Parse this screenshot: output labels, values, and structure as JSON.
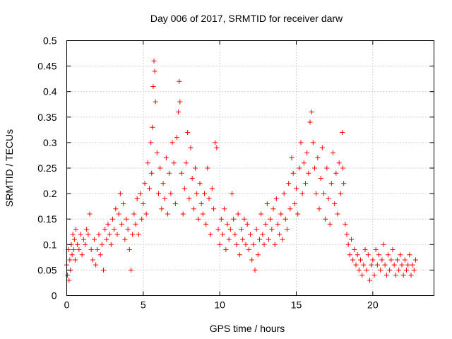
{
  "chart_data": {
    "type": "scatter",
    "title": "Day 006 of 2017, SRMTID for receiver darw",
    "xlabel": "GPS time / hours",
    "ylabel": "SRMTID / TECUs",
    "xlim": [
      0,
      24
    ],
    "ylim": [
      0,
      0.5
    ],
    "xticks": [
      0,
      5,
      10,
      15,
      20
    ],
    "xtick_labels": [
      "0",
      "5",
      "10",
      "15",
      "20"
    ],
    "yticks": [
      0,
      0.05,
      0.1,
      0.15,
      0.2,
      0.25,
      0.3,
      0.35,
      0.4,
      0.45,
      0.5
    ],
    "ytick_labels": [
      "0",
      "0.05",
      "0.1",
      "0.15",
      "0.2",
      "0.25",
      "0.3",
      "0.35",
      "0.4",
      "0.45",
      "0.5"
    ],
    "grid": true,
    "marker": "+",
    "marker_color": "#ff0000",
    "series": [
      {
        "name": "SRMTID",
        "points": [
          [
            0.0,
            0.06
          ],
          [
            0.05,
            0.04
          ],
          [
            0.1,
            0.09
          ],
          [
            0.15,
            0.03
          ],
          [
            0.2,
            0.07
          ],
          [
            0.25,
            0.05
          ],
          [
            0.3,
            0.1
          ],
          [
            0.35,
            0.08
          ],
          [
            0.4,
            0.12
          ],
          [
            0.45,
            0.09
          ],
          [
            0.5,
            0.11
          ],
          [
            0.55,
            0.07
          ],
          [
            0.6,
            0.13
          ],
          [
            0.7,
            0.1
          ],
          [
            0.8,
            0.09
          ],
          [
            0.9,
            0.12
          ],
          [
            1.0,
            0.08
          ],
          [
            1.1,
            0.11
          ],
          [
            1.2,
            0.1
          ],
          [
            1.3,
            0.13
          ],
          [
            1.4,
            0.12
          ],
          [
            1.5,
            0.16
          ],
          [
            1.6,
            0.09
          ],
          [
            1.7,
            0.07
          ],
          [
            1.8,
            0.11
          ],
          [
            1.9,
            0.06
          ],
          [
            2.0,
            0.09
          ],
          [
            2.1,
            0.12
          ],
          [
            2.2,
            0.08
          ],
          [
            2.3,
            0.1
          ],
          [
            2.4,
            0.05
          ],
          [
            2.5,
            0.13
          ],
          [
            2.6,
            0.11
          ],
          [
            2.7,
            0.14
          ],
          [
            2.8,
            0.12
          ],
          [
            2.9,
            0.1
          ],
          [
            3.0,
            0.15
          ],
          [
            3.1,
            0.13
          ],
          [
            3.2,
            0.17
          ],
          [
            3.3,
            0.12
          ],
          [
            3.4,
            0.16
          ],
          [
            3.5,
            0.2
          ],
          [
            3.6,
            0.14
          ],
          [
            3.7,
            0.18
          ],
          [
            3.8,
            0.11
          ],
          [
            3.9,
            0.15
          ],
          [
            4.0,
            0.13
          ],
          [
            4.1,
            0.09
          ],
          [
            4.2,
            0.05
          ],
          [
            4.3,
            0.12
          ],
          [
            4.4,
            0.16
          ],
          [
            4.5,
            0.14
          ],
          [
            4.6,
            0.19
          ],
          [
            4.7,
            0.12
          ],
          [
            4.8,
            0.2
          ],
          [
            4.9,
            0.15
          ],
          [
            5.0,
            0.18
          ],
          [
            5.1,
            0.22
          ],
          [
            5.2,
            0.16
          ],
          [
            5.3,
            0.26
          ],
          [
            5.4,
            0.21
          ],
          [
            5.5,
            0.3
          ],
          [
            5.55,
            0.24
          ],
          [
            5.6,
            0.33
          ],
          [
            5.65,
            0.41
          ],
          [
            5.7,
            0.46
          ],
          [
            5.75,
            0.44
          ],
          [
            5.8,
            0.38
          ],
          [
            5.9,
            0.28
          ],
          [
            6.0,
            0.2
          ],
          [
            6.1,
            0.25
          ],
          [
            6.2,
            0.17
          ],
          [
            6.3,
            0.22
          ],
          [
            6.4,
            0.19
          ],
          [
            6.5,
            0.27
          ],
          [
            6.6,
            0.16
          ],
          [
            6.7,
            0.24
          ],
          [
            6.8,
            0.2
          ],
          [
            6.9,
            0.3
          ],
          [
            7.0,
            0.26
          ],
          [
            7.1,
            0.18
          ],
          [
            7.2,
            0.31
          ],
          [
            7.3,
            0.36
          ],
          [
            7.35,
            0.42
          ],
          [
            7.4,
            0.38
          ],
          [
            7.5,
            0.24
          ],
          [
            7.6,
            0.16
          ],
          [
            7.7,
            0.21
          ],
          [
            7.8,
            0.26
          ],
          [
            7.9,
            0.32
          ],
          [
            8.0,
            0.19
          ],
          [
            8.1,
            0.29
          ],
          [
            8.2,
            0.23
          ],
          [
            8.3,
            0.17
          ],
          [
            8.4,
            0.25
          ],
          [
            8.5,
            0.2
          ],
          [
            8.6,
            0.15
          ],
          [
            8.7,
            0.22
          ],
          [
            8.8,
            0.18
          ],
          [
            8.9,
            0.16
          ],
          [
            9.0,
            0.2
          ],
          [
            9.1,
            0.14
          ],
          [
            9.2,
            0.25
          ],
          [
            9.3,
            0.19
          ],
          [
            9.4,
            0.12
          ],
          [
            9.5,
            0.21
          ],
          [
            9.6,
            0.17
          ],
          [
            9.7,
            0.3
          ],
          [
            9.8,
            0.29
          ],
          [
            9.9,
            0.13
          ],
          [
            10.0,
            0.1
          ],
          [
            10.1,
            0.15
          ],
          [
            10.2,
            0.12
          ],
          [
            10.3,
            0.17
          ],
          [
            10.4,
            0.09
          ],
          [
            10.5,
            0.14
          ],
          [
            10.6,
            0.11
          ],
          [
            10.7,
            0.13
          ],
          [
            10.8,
            0.2
          ],
          [
            10.9,
            0.15
          ],
          [
            11.0,
            0.12
          ],
          [
            11.1,
            0.1
          ],
          [
            11.2,
            0.16
          ],
          [
            11.3,
            0.08
          ],
          [
            11.4,
            0.13
          ],
          [
            11.5,
            0.11
          ],
          [
            11.6,
            0.15
          ],
          [
            11.7,
            0.1
          ],
          [
            11.8,
            0.14
          ],
          [
            11.9,
            0.09
          ],
          [
            12.0,
            0.12
          ],
          [
            12.1,
            0.07
          ],
          [
            12.2,
            0.1
          ],
          [
            12.3,
            0.05
          ],
          [
            12.4,
            0.13
          ],
          [
            12.5,
            0.08
          ],
          [
            12.6,
            0.11
          ],
          [
            12.7,
            0.16
          ],
          [
            12.8,
            0.12
          ],
          [
            12.9,
            0.1
          ],
          [
            13.0,
            0.14
          ],
          [
            13.1,
            0.18
          ],
          [
            13.2,
            0.11
          ],
          [
            13.3,
            0.15
          ],
          [
            13.4,
            0.13
          ],
          [
            13.5,
            0.17
          ],
          [
            13.6,
            0.1
          ],
          [
            13.7,
            0.19
          ],
          [
            13.8,
            0.14
          ],
          [
            13.9,
            0.12
          ],
          [
            14.0,
            0.16
          ],
          [
            14.1,
            0.11
          ],
          [
            14.2,
            0.2
          ],
          [
            14.3,
            0.15
          ],
          [
            14.4,
            0.13
          ],
          [
            14.5,
            0.22
          ],
          [
            14.6,
            0.17
          ],
          [
            14.7,
            0.27
          ],
          [
            14.8,
            0.24
          ],
          [
            14.9,
            0.18
          ],
          [
            15.0,
            0.21
          ],
          [
            15.1,
            0.16
          ],
          [
            15.2,
            0.25
          ],
          [
            15.3,
            0.3
          ],
          [
            15.4,
            0.2
          ],
          [
            15.5,
            0.26
          ],
          [
            15.6,
            0.22
          ],
          [
            15.7,
            0.28
          ],
          [
            15.8,
            0.24
          ],
          [
            15.9,
            0.34
          ],
          [
            16.0,
            0.36
          ],
          [
            16.1,
            0.3
          ],
          [
            16.2,
            0.25
          ],
          [
            16.3,
            0.2
          ],
          [
            16.4,
            0.27
          ],
          [
            16.5,
            0.17
          ],
          [
            16.6,
            0.23
          ],
          [
            16.7,
            0.29
          ],
          [
            16.8,
            0.2
          ],
          [
            16.9,
            0.15
          ],
          [
            17.0,
            0.25
          ],
          [
            17.1,
            0.19
          ],
          [
            17.2,
            0.14
          ],
          [
            17.3,
            0.22
          ],
          [
            17.4,
            0.28
          ],
          [
            17.5,
            0.18
          ],
          [
            17.6,
            0.24
          ],
          [
            17.7,
            0.16
          ],
          [
            17.8,
            0.26
          ],
          [
            17.9,
            0.2
          ],
          [
            18.0,
            0.32
          ],
          [
            18.05,
            0.25
          ],
          [
            18.1,
            0.22
          ],
          [
            18.2,
            0.14
          ],
          [
            18.3,
            0.12
          ],
          [
            18.4,
            0.1
          ],
          [
            18.5,
            0.08
          ],
          [
            18.6,
            0.11
          ],
          [
            18.7,
            0.07
          ],
          [
            18.8,
            0.09
          ],
          [
            18.9,
            0.06
          ],
          [
            19.0,
            0.08
          ],
          [
            19.1,
            0.05
          ],
          [
            19.2,
            0.07
          ],
          [
            19.3,
            0.04
          ],
          [
            19.4,
            0.06
          ],
          [
            19.5,
            0.09
          ],
          [
            19.6,
            0.05
          ],
          [
            19.7,
            0.08
          ],
          [
            19.8,
            0.03
          ],
          [
            19.9,
            0.06
          ],
          [
            20.0,
            0.07
          ],
          [
            20.1,
            0.04
          ],
          [
            20.2,
            0.09
          ],
          [
            20.3,
            0.06
          ],
          [
            20.4,
            0.08
          ],
          [
            20.5,
            0.05
          ],
          [
            20.6,
            0.07
          ],
          [
            20.7,
            0.1
          ],
          [
            20.8,
            0.06
          ],
          [
            20.9,
            0.04
          ],
          [
            21.0,
            0.08
          ],
          [
            21.1,
            0.05
          ],
          [
            21.2,
            0.07
          ],
          [
            21.3,
            0.09
          ],
          [
            21.4,
            0.06
          ],
          [
            21.5,
            0.04
          ],
          [
            21.6,
            0.07
          ],
          [
            21.7,
            0.05
          ],
          [
            21.8,
            0.08
          ],
          [
            21.9,
            0.06
          ],
          [
            22.0,
            0.04
          ],
          [
            22.1,
            0.07
          ],
          [
            22.2,
            0.05
          ],
          [
            22.3,
            0.06
          ],
          [
            22.4,
            0.08
          ],
          [
            22.5,
            0.04
          ],
          [
            22.6,
            0.06
          ],
          [
            22.7,
            0.05
          ],
          [
            22.8,
            0.07
          ]
        ]
      }
    ]
  }
}
